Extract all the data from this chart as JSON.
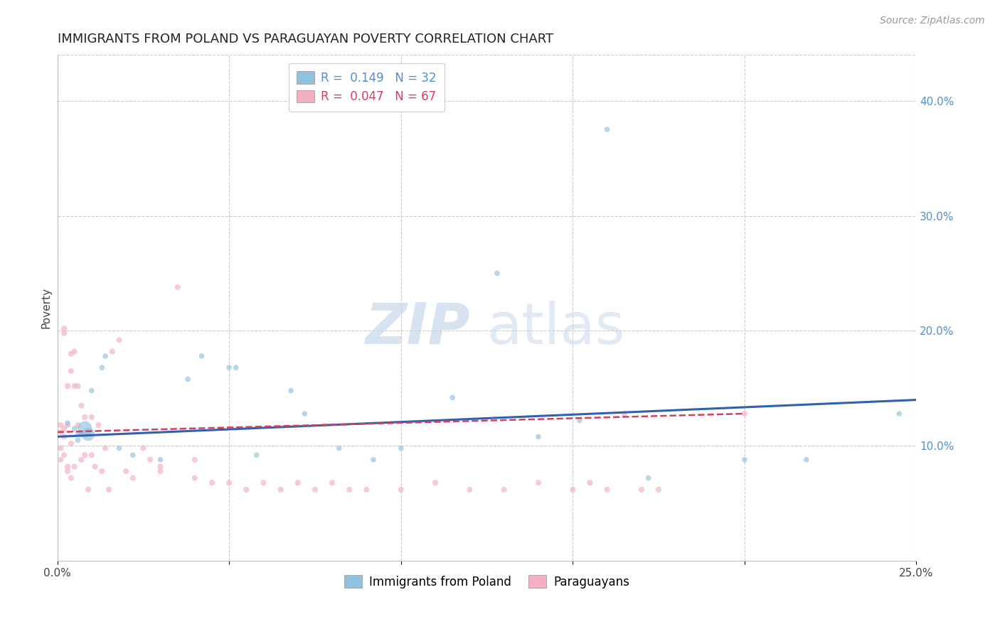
{
  "title": "IMMIGRANTS FROM POLAND VS PARAGUAYAN POVERTY CORRELATION CHART",
  "source": "Source: ZipAtlas.com",
  "ylabel": "Poverty",
  "watermark_zip": "ZIP",
  "watermark_atlas": "atlas",
  "xlim": [
    0.0,
    0.25
  ],
  "ylim": [
    0.0,
    0.44
  ],
  "xtick_positions": [
    0.0,
    0.05,
    0.1,
    0.15,
    0.2,
    0.25
  ],
  "xtick_labels": [
    "0.0%",
    "",
    "",
    "",
    "",
    "25.0%"
  ],
  "ytick_positions": [
    0.1,
    0.2,
    0.3,
    0.4
  ],
  "ytick_labels": [
    "10.0%",
    "20.0%",
    "30.0%",
    "40.0%"
  ],
  "blue_color": "#92c0e0",
  "pink_color": "#f4b0c0",
  "blue_line_color": "#3060b0",
  "pink_line_color": "#d04060",
  "legend_R_blue": "0.149",
  "legend_N_blue": "32",
  "legend_R_pink": "0.047",
  "legend_N_pink": "67",
  "legend_text_blue": "#5090d0",
  "legend_text_pink": "#d04060",
  "legend_N_blue_color": "#cc2222",
  "legend_N_pink_color": "#cc2222",
  "blue_scatter_x": [
    0.003,
    0.005,
    0.006,
    0.006,
    0.007,
    0.008,
    0.009,
    0.01,
    0.013,
    0.014,
    0.018,
    0.022,
    0.03,
    0.038,
    0.042,
    0.05,
    0.052,
    0.058,
    0.068,
    0.072,
    0.082,
    0.092,
    0.1,
    0.115,
    0.128,
    0.14,
    0.152,
    0.16,
    0.172,
    0.2,
    0.218,
    0.245
  ],
  "blue_scatter_y": [
    0.12,
    0.115,
    0.11,
    0.105,
    0.11,
    0.115,
    0.11,
    0.148,
    0.168,
    0.178,
    0.098,
    0.092,
    0.088,
    0.158,
    0.178,
    0.168,
    0.168,
    0.092,
    0.148,
    0.128,
    0.098,
    0.088,
    0.098,
    0.142,
    0.25,
    0.108,
    0.122,
    0.375,
    0.072,
    0.088,
    0.088,
    0.128
  ],
  "blue_scatter_sizes": [
    30,
    30,
    30,
    30,
    30,
    220,
    180,
    30,
    30,
    30,
    30,
    30,
    30,
    30,
    30,
    30,
    30,
    30,
    30,
    30,
    30,
    30,
    30,
    30,
    30,
    30,
    30,
    30,
    30,
    30,
    30,
    30
  ],
  "pink_scatter_x": [
    0.001,
    0.001,
    0.001,
    0.001,
    0.002,
    0.002,
    0.002,
    0.002,
    0.002,
    0.003,
    0.003,
    0.003,
    0.003,
    0.004,
    0.004,
    0.004,
    0.004,
    0.005,
    0.005,
    0.005,
    0.006,
    0.006,
    0.007,
    0.007,
    0.008,
    0.008,
    0.009,
    0.01,
    0.01,
    0.011,
    0.012,
    0.013,
    0.014,
    0.015,
    0.016,
    0.018,
    0.02,
    0.022,
    0.025,
    0.027,
    0.03,
    0.03,
    0.035,
    0.04,
    0.04,
    0.045,
    0.05,
    0.055,
    0.06,
    0.065,
    0.07,
    0.075,
    0.08,
    0.085,
    0.09,
    0.1,
    0.11,
    0.12,
    0.13,
    0.14,
    0.15,
    0.155,
    0.16,
    0.165,
    0.17,
    0.175,
    0.2
  ],
  "pink_scatter_y": [
    0.118,
    0.112,
    0.098,
    0.088,
    0.198,
    0.202,
    0.115,
    0.108,
    0.092,
    0.152,
    0.118,
    0.082,
    0.078,
    0.18,
    0.165,
    0.102,
    0.072,
    0.182,
    0.152,
    0.082,
    0.152,
    0.118,
    0.135,
    0.088,
    0.125,
    0.092,
    0.062,
    0.125,
    0.092,
    0.082,
    0.118,
    0.078,
    0.098,
    0.062,
    0.182,
    0.192,
    0.078,
    0.072,
    0.098,
    0.088,
    0.082,
    0.078,
    0.238,
    0.088,
    0.072,
    0.068,
    0.068,
    0.062,
    0.068,
    0.062,
    0.068,
    0.062,
    0.068,
    0.062,
    0.062,
    0.062,
    0.068,
    0.062,
    0.062,
    0.068,
    0.062,
    0.068,
    0.062,
    0.128,
    0.062,
    0.062,
    0.128
  ],
  "blue_line_x": [
    0.0,
    0.25
  ],
  "blue_line_y": [
    0.108,
    0.14
  ],
  "pink_line_x": [
    0.0,
    0.2
  ],
  "pink_line_y": [
    0.112,
    0.128
  ],
  "background_color": "#ffffff",
  "grid_color": "#cccccc"
}
